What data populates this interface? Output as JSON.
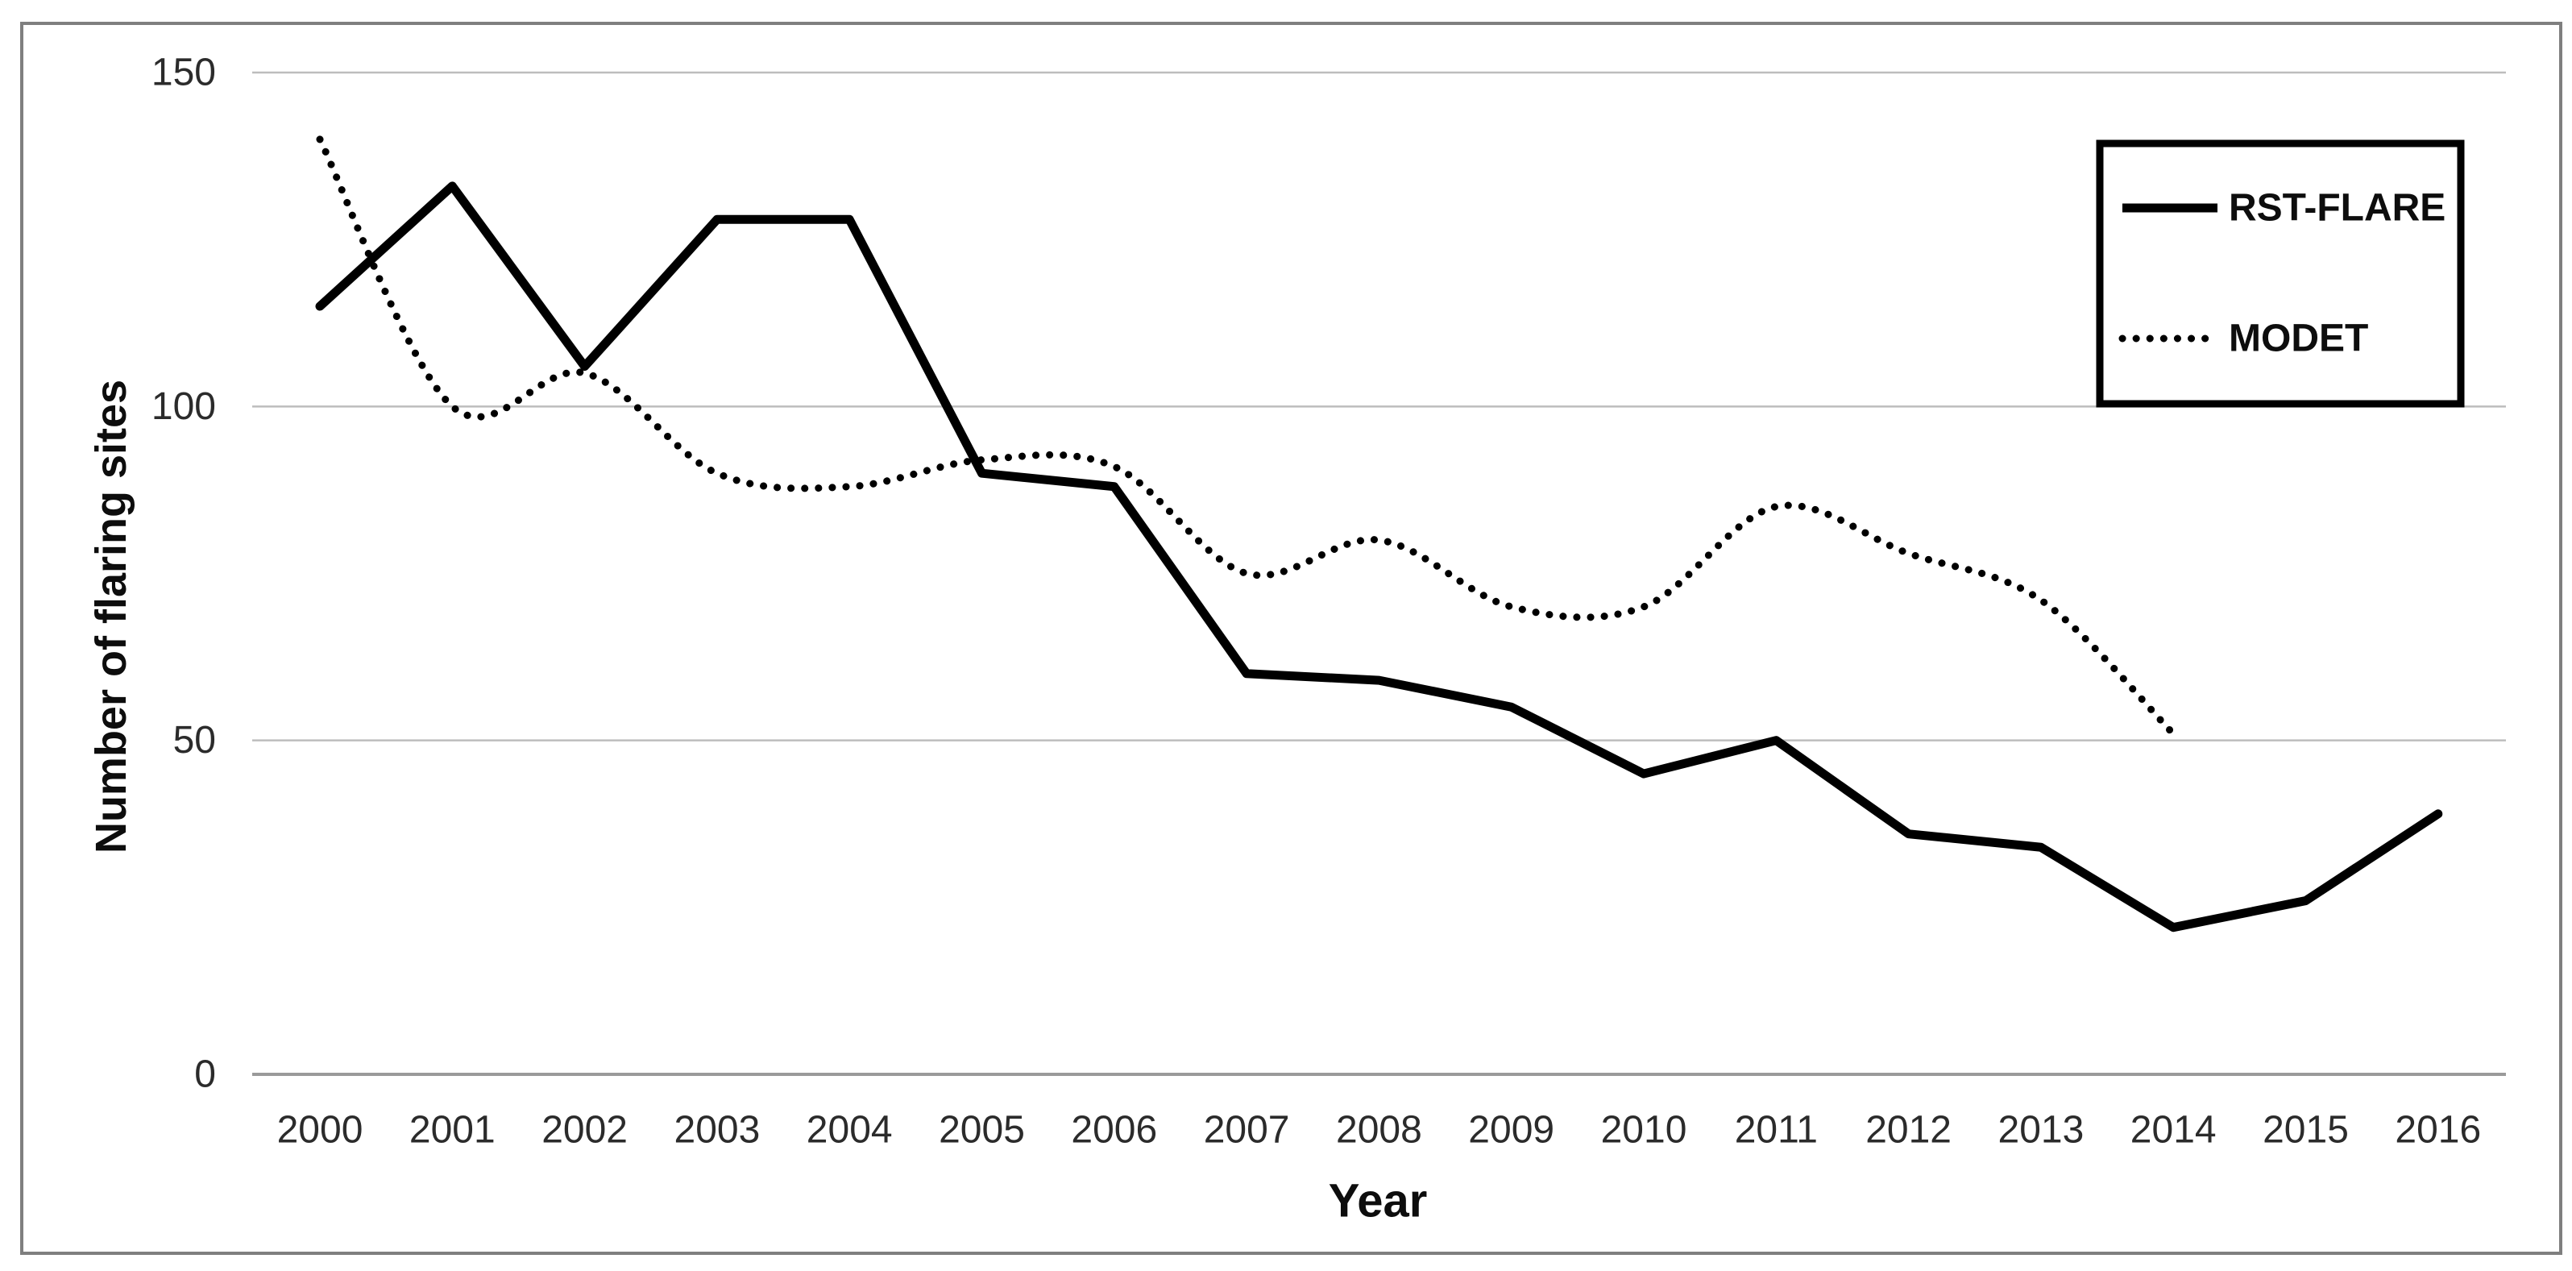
{
  "chart_data": {
    "type": "line",
    "title": "",
    "xlabel": "Year",
    "ylabel": "Number of flaring sites",
    "x": [
      2000,
      2001,
      2002,
      2003,
      2004,
      2005,
      2006,
      2007,
      2008,
      2009,
      2010,
      2011,
      2012,
      2013,
      2014,
      2015,
      2016
    ],
    "x_tick_labels": [
      "2000",
      "2001",
      "2002",
      "2003",
      "2004",
      "2005",
      "2006",
      "2007",
      "2008",
      "2009",
      "2010",
      "2011",
      "2012",
      "2013",
      "2014",
      "2015",
      "2016"
    ],
    "yticks": [
      0,
      50,
      100,
      150
    ],
    "ylim": [
      0,
      150
    ],
    "grid": "horizontal",
    "legend_position": "top-right",
    "series": [
      {
        "name": "RST-FLARE",
        "line_style": "solid",
        "smooth": false,
        "color": "#000000",
        "values": [
          115,
          133,
          106,
          128,
          128,
          90,
          88,
          60,
          59,
          55,
          45,
          50,
          36,
          34,
          22,
          26,
          39
        ]
      },
      {
        "name": "MODET",
        "line_style": "dotted",
        "smooth": true,
        "color": "#000000",
        "values": [
          140,
          100,
          105,
          90,
          88,
          92,
          91,
          75,
          80,
          70,
          70,
          85,
          78,
          71,
          51,
          null,
          null
        ]
      }
    ]
  },
  "colors": {
    "line": "#000000",
    "gridline": "#bdbdbd",
    "zero_axis_line": "#9a9a9a",
    "figure_border": "#7f7f7f",
    "text": "#2b2b2b"
  }
}
